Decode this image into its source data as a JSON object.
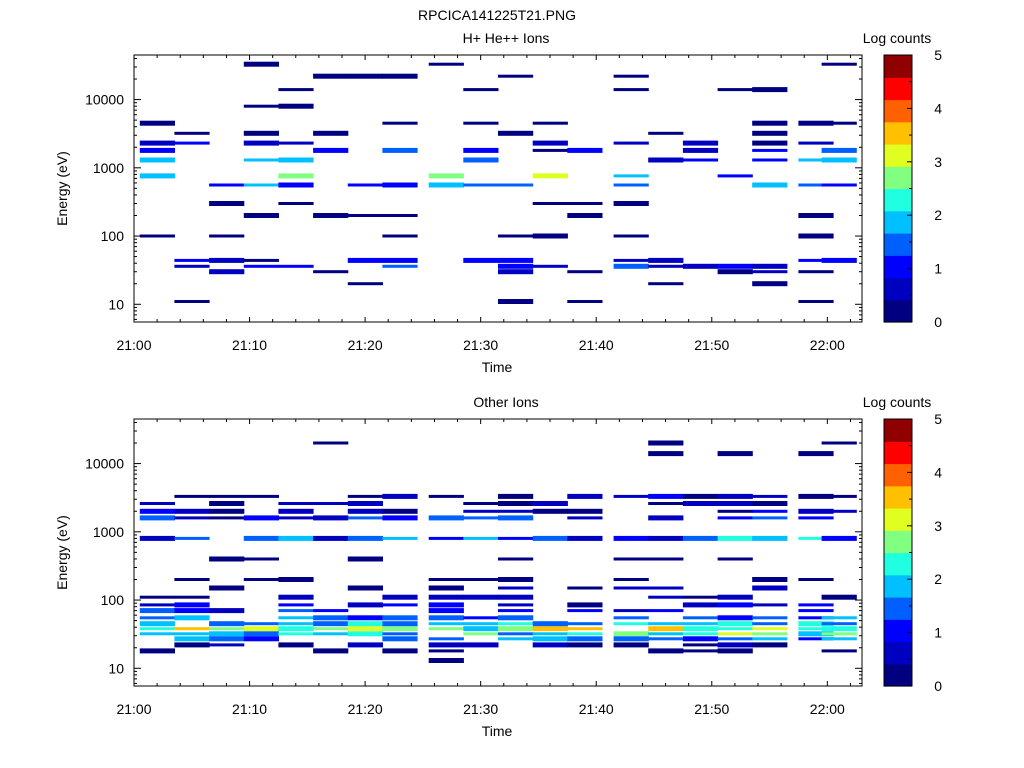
{
  "figure": {
    "title": "RPCICA141225T21.PNG"
  },
  "colormap": [
    "#000080",
    "#0000c0",
    "#0000ff",
    "#0060ff",
    "#00c0ff",
    "#20ffe0",
    "#80ff80",
    "#e0ff20",
    "#ffc000",
    "#ff6000",
    "#ff0000",
    "#900000"
  ],
  "chart_data": [
    {
      "type": "heatmap",
      "title": "H+ He++ Ions",
      "xlabel": "Time",
      "ylabel": "Energy (eV)",
      "x_ticks": [
        "21:00",
        "21:10",
        "21:20",
        "21:30",
        "21:40",
        "21:50",
        "22:00"
      ],
      "y_ticks": [
        "10",
        "100",
        "1000",
        "10000"
      ],
      "y_scale": "log",
      "ylim": [
        5.5,
        45000
      ],
      "colorbar": {
        "label": "Log counts",
        "ticks": [
          "0",
          "1",
          "2",
          "3",
          "4",
          "5"
        ],
        "range": [
          0,
          5
        ]
      },
      "time_bins": [
        "21:02",
        "21:05",
        "21:08",
        "21:11",
        "21:14",
        "21:17",
        "21:20",
        "21:23",
        "21:27",
        "21:30",
        "21:33",
        "21:36",
        "21:39",
        "21:43",
        "21:46",
        "21:49",
        "21:52",
        "21:55",
        "21:59",
        "22:01"
      ],
      "bands": [
        [
          760,
          0.8,
          3.7,
          0.4
        ],
        [
          1300,
          0.5,
          2.8,
          0.4
        ],
        [
          560,
          0.9,
          2.0,
          0.4
        ],
        [
          1800,
          0.3,
          1.3,
          0.5
        ],
        [
          2300,
          0.2,
          0.9,
          0.5
        ],
        [
          36,
          0.6,
          1.4,
          0.5
        ],
        [
          44,
          0.3,
          1.2,
          0.6
        ],
        [
          30,
          0.1,
          0.8,
          0.7
        ],
        [
          3200,
          0.05,
          0.5,
          0.6
        ],
        [
          4500,
          0.0,
          0.3,
          0.6
        ],
        [
          8000,
          0.0,
          0.2,
          0.75
        ],
        [
          14000,
          0.0,
          0.2,
          0.75
        ],
        [
          22000,
          0.0,
          0.2,
          0.75
        ],
        [
          33000,
          0.0,
          0.3,
          0.7
        ],
        [
          200,
          0.0,
          0.2,
          0.8
        ],
        [
          300,
          0.0,
          0.2,
          0.8
        ],
        [
          100,
          0.0,
          0.2,
          0.85
        ],
        [
          20,
          0.0,
          0.4,
          0.85
        ],
        [
          11,
          0.0,
          0.3,
          0.88
        ]
      ]
    },
    {
      "type": "heatmap",
      "title": "Other Ions",
      "xlabel": "Time",
      "ylabel": "Energy (eV)",
      "x_ticks": [
        "21:00",
        "21:10",
        "21:20",
        "21:30",
        "21:40",
        "21:50",
        "22:00"
      ],
      "y_ticks": [
        "10",
        "100",
        "1000",
        "10000"
      ],
      "y_scale": "log",
      "ylim": [
        5.5,
        45000
      ],
      "colorbar": {
        "label": "Log counts",
        "ticks": [
          "0",
          "1",
          "2",
          "3",
          "4",
          "5"
        ],
        "range": [
          0,
          5
        ]
      },
      "time_bins": [
        "21:02",
        "21:05",
        "21:08",
        "21:11",
        "21:14",
        "21:17",
        "21:20",
        "21:23",
        "21:27",
        "21:30",
        "21:33",
        "21:36",
        "21:39",
        "21:43",
        "21:46",
        "21:49",
        "21:52",
        "21:55",
        "21:59",
        "22:01"
      ],
      "bands": [
        [
          38,
          1.6,
          3.6,
          0.05
        ],
        [
          32,
          1.2,
          3.0,
          0.1
        ],
        [
          45,
          1.3,
          2.6,
          0.1
        ],
        [
          27,
          0.9,
          2.0,
          0.15
        ],
        [
          55,
          0.9,
          1.8,
          0.15
        ],
        [
          70,
          0.6,
          1.4,
          0.2
        ],
        [
          85,
          0.4,
          1.2,
          0.25
        ],
        [
          110,
          0.2,
          0.8,
          0.35
        ],
        [
          800,
          0.6,
          2.3,
          0.1
        ],
        [
          1600,
          0.4,
          1.6,
          0.2
        ],
        [
          2000,
          0.2,
          1.1,
          0.3
        ],
        [
          2600,
          0.1,
          0.8,
          0.35
        ],
        [
          3300,
          0.1,
          0.9,
          0.3
        ],
        [
          150,
          0.0,
          0.6,
          0.5
        ],
        [
          200,
          0.0,
          0.4,
          0.6
        ],
        [
          22,
          0.0,
          0.6,
          0.4
        ],
        [
          18,
          0.0,
          0.3,
          0.7
        ],
        [
          13,
          0.0,
          0.2,
          0.85
        ],
        [
          400,
          0.0,
          0.2,
          0.8
        ],
        [
          20000,
          0.0,
          0.15,
          0.85
        ],
        [
          14000,
          0.0,
          0.15,
          0.9
        ]
      ]
    }
  ]
}
